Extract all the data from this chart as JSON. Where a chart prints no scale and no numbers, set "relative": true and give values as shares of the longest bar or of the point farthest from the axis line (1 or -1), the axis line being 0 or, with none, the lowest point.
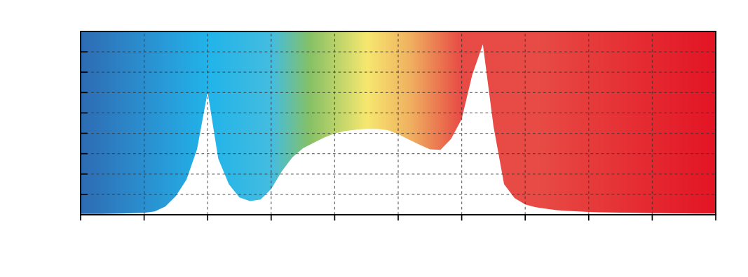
{
  "chart_data": {
    "type": "area",
    "relative": true,
    "grid": true,
    "categories": [
      null,
      null,
      null,
      null,
      null,
      null,
      null,
      null,
      null,
      null,
      null,
      null,
      null,
      null,
      null,
      null,
      null,
      null,
      null,
      null,
      null,
      null,
      null,
      null,
      null,
      null,
      null,
      null,
      null,
      null,
      null,
      null,
      null,
      null,
      null,
      null,
      null,
      null,
      null,
      null,
      null,
      null,
      null,
      null,
      null,
      null,
      null,
      null,
      null,
      null,
      null,
      null,
      null,
      null,
      null,
      null,
      null,
      null,
      null,
      null,
      null
    ],
    "series": [
      {
        "color": "#ffffff",
        "values": [
          0.005,
          0.005,
          0.005,
          0.006,
          0.007,
          0.009,
          0.011,
          0.02,
          0.048,
          0.11,
          0.206,
          0.385,
          0.72,
          0.329,
          0.18,
          0.102,
          0.08,
          0.089,
          0.151,
          0.254,
          0.336,
          0.39,
          0.422,
          0.452,
          0.477,
          0.491,
          0.499,
          0.504,
          0.504,
          0.496,
          0.473,
          0.441,
          0.411,
          0.384,
          0.381,
          0.445,
          0.562,
          0.822,
          1.0,
          0.52,
          0.18,
          0.097,
          0.061,
          0.044,
          0.035,
          0.027,
          0.023,
          0.019,
          0.016,
          0.014,
          0.013,
          0.012,
          0.011,
          0.01,
          0.009,
          0.009,
          0.008,
          0.008,
          0.007,
          0.007,
          0.007
        ]
      }
    ]
  }
}
